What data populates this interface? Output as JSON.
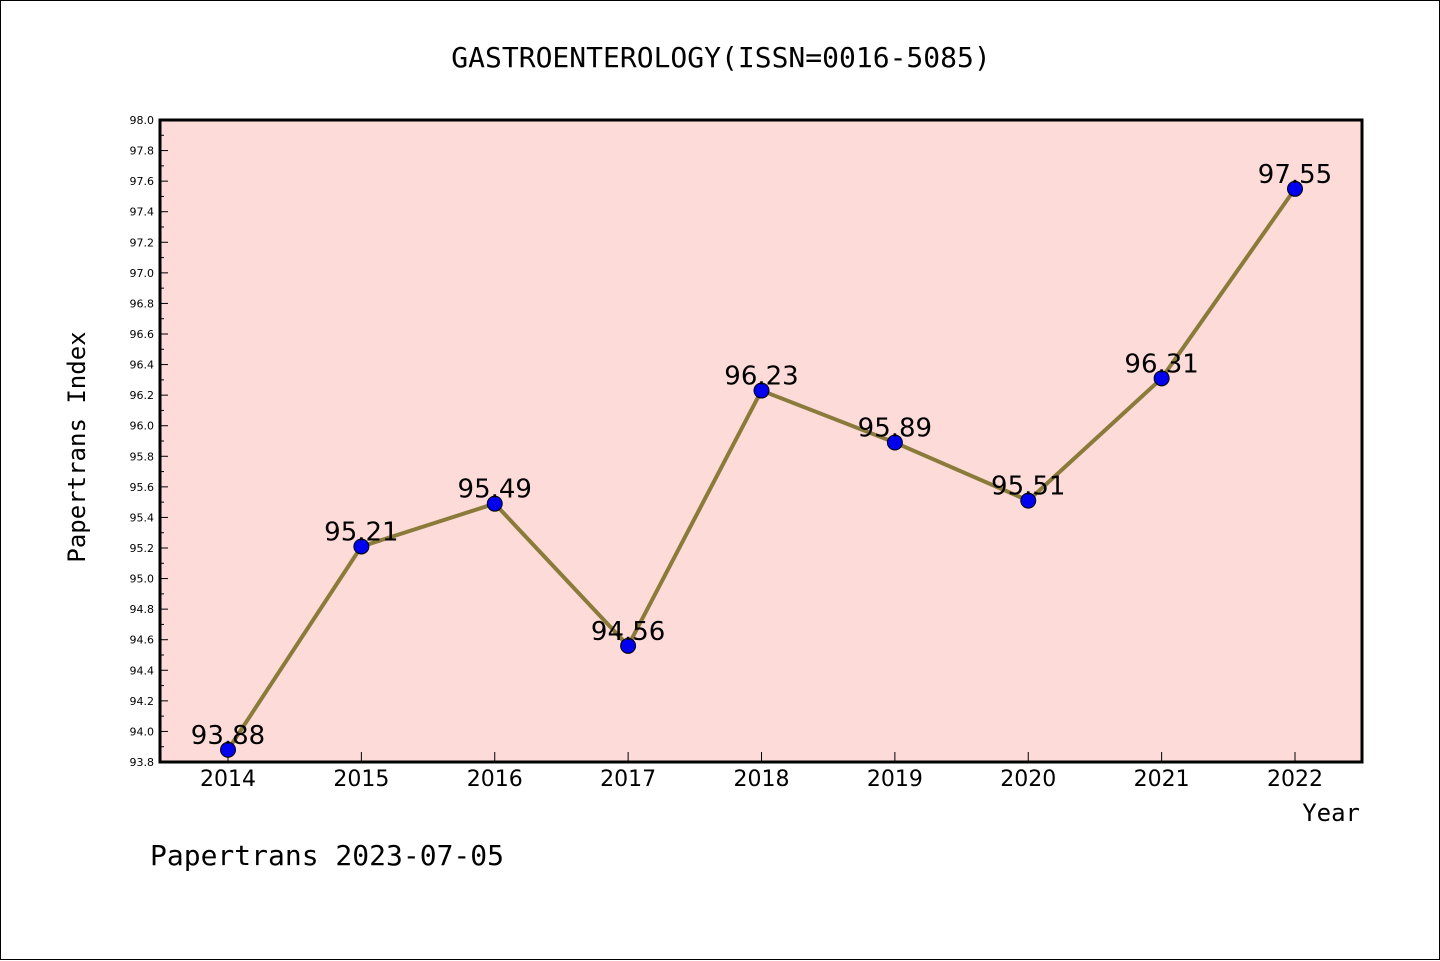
{
  "chart_data": {
    "type": "line",
    "title": "GASTROENTEROLOGY(ISSN=0016-5085)",
    "xlabel": "Year",
    "ylabel": "Papertrans Index",
    "categories": [
      "2014",
      "2015",
      "2016",
      "2017",
      "2018",
      "2019",
      "2020",
      "2021",
      "2022"
    ],
    "series": [
      {
        "values": [
          93.88,
          95.21,
          95.49,
          94.56,
          96.23,
          95.89,
          95.51,
          96.31,
          97.55
        ],
        "labels": [
          "93.88",
          "95.21",
          "95.49",
          "94.56",
          "96.23",
          "95.89",
          "95.51",
          "96.31",
          "97.55"
        ]
      }
    ],
    "ylim": [
      93.8,
      98.0
    ],
    "yticks": [
      "93.8",
      "94.0",
      "94.2",
      "94.4",
      "94.6",
      "94.8",
      "95.0",
      "95.2",
      "95.4",
      "95.6",
      "95.8",
      "96.0",
      "96.2",
      "96.4",
      "96.6",
      "96.8",
      "97.0",
      "97.2",
      "97.4",
      "97.6",
      "97.8",
      "98.0"
    ],
    "grid": false,
    "line_color": "#8B7B3A",
    "marker_color": "#0000EE",
    "plot_background": "#FDDBD9"
  },
  "footer": "Papertrans 2023-07-05"
}
